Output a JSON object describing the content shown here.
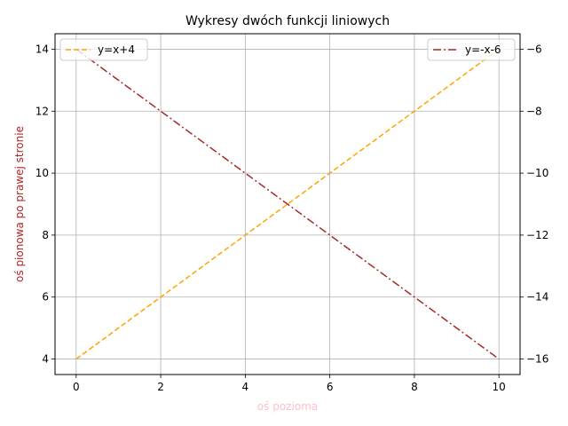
{
  "chart_data": {
    "type": "line",
    "title": "Wykresy dwóch funkcji liniowych",
    "xlabel": "oś pozioma",
    "ylabel": "oś pionowa po prawej stronie",
    "xlabel_color": "#ffc0cb",
    "ylabel_color": "#b22222",
    "grid": true,
    "xlim": [
      -0.5,
      10.5
    ],
    "ylim_left": [
      3.5,
      14.5
    ],
    "ylim_right": [
      -16.5,
      -5.5
    ],
    "x_ticks": [
      0,
      2,
      4,
      6,
      8,
      10
    ],
    "y_left_ticks": [
      4,
      6,
      8,
      10,
      12,
      14
    ],
    "y_right_ticks": [
      -16,
      -14,
      -12,
      -10,
      -8,
      -6
    ],
    "x_tick_labels": [
      "0",
      "2",
      "4",
      "6",
      "8",
      "10"
    ],
    "y_left_tick_labels": [
      "4",
      "6",
      "8",
      "10",
      "12",
      "14"
    ],
    "y_right_tick_labels": [
      "−16",
      "−14",
      "−12",
      "−10",
      "−8",
      "−6"
    ],
    "series": [
      {
        "name": "y=x+4",
        "axis": "left",
        "color": "#ffa500",
        "dash": "dashed",
        "legend": "top-left",
        "x": [
          0,
          1,
          2,
          3,
          4,
          5,
          6,
          7,
          8,
          9,
          10
        ],
        "y": [
          4,
          5,
          6,
          7,
          8,
          9,
          10,
          11,
          12,
          13,
          14
        ]
      },
      {
        "name": "y=-x-6",
        "axis": "right",
        "color": "#a52a2a",
        "dash": "dashdot",
        "legend": "top-right",
        "x": [
          0,
          1,
          2,
          3,
          4,
          5,
          6,
          7,
          8,
          9,
          10
        ],
        "y": [
          -6,
          -7,
          -8,
          -9,
          -10,
          -11,
          -12,
          -13,
          -14,
          -15,
          -16
        ]
      }
    ]
  }
}
